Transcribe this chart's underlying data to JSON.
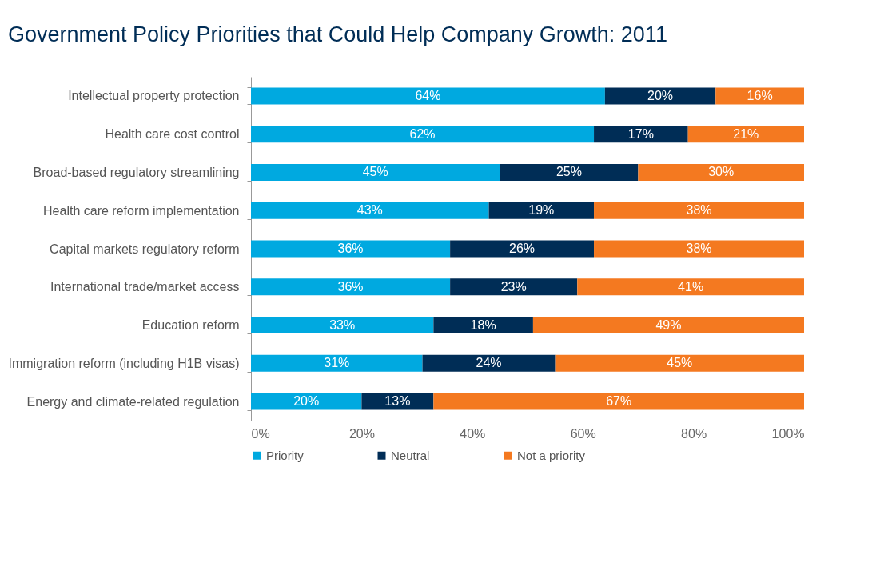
{
  "chart_data": {
    "type": "bar",
    "title": "Government Policy Priorities that Could Help Company Growth: 2011",
    "orientation": "horizontal",
    "stacked": true,
    "categories": [
      "Intellectual property protection",
      "Health care cost control",
      "Broad-based regulatory streamlining",
      "Health care reform implementation",
      "Capital markets regulatory reform",
      "International trade/market access",
      "Education reform",
      "Immigration reform (including H1B visas)",
      "Energy and climate-related regulation"
    ],
    "series": [
      {
        "name": "Priority",
        "color": "#00a9e0",
        "values": [
          64,
          62,
          45,
          43,
          36,
          36,
          33,
          31,
          20
        ],
        "value_labels": [
          "64%",
          "62%",
          "45%",
          "43%",
          "36%",
          "36%",
          "33%",
          "31%",
          "20%"
        ]
      },
      {
        "name": "Neutral",
        "color": "#002d56",
        "values": [
          20,
          17,
          25,
          19,
          26,
          23,
          18,
          24,
          13
        ],
        "value_labels": [
          "20%",
          "17%",
          "25%",
          "19%",
          "26%",
          "23%",
          "18%",
          "24%",
          "13%"
        ]
      },
      {
        "name": "Not a priority",
        "color": "#f47920",
        "values": [
          16,
          21,
          30,
          38,
          38,
          41,
          49,
          45,
          67
        ],
        "value_labels": [
          "16%",
          "21%",
          "30%",
          "38%",
          "38%",
          "41%",
          "49%",
          "45%",
          "67%"
        ]
      }
    ],
    "xlim": [
      0,
      100
    ],
    "xticks": [
      {
        "value": 0,
        "label": "0%"
      },
      {
        "value": 20,
        "label": "20%"
      },
      {
        "value": 40,
        "label": "40%"
      },
      {
        "value": 60,
        "label": "60%"
      },
      {
        "value": 80,
        "label": "80%"
      },
      {
        "value": 100,
        "label": "100%"
      }
    ],
    "grid": false,
    "legend": "bottom left"
  }
}
